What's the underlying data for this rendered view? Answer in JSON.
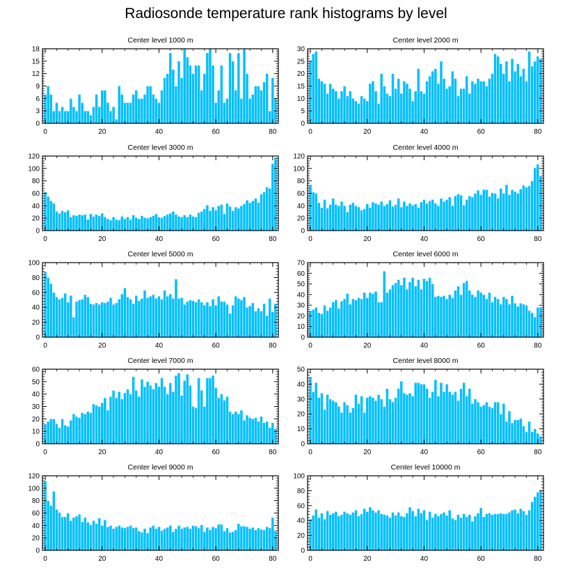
{
  "title": "Radiosonde temperature rank histograms by level",
  "colors": {
    "bar": "#00bfff",
    "bar_edge": "#ffffff",
    "axis": "#000000"
  },
  "chart_data": [
    {
      "type": "bar",
      "title": "Center level 1000 m",
      "x_ticks": [
        0,
        20,
        40,
        60,
        80
      ],
      "y_ticks": [
        0,
        3,
        6,
        9,
        12,
        15,
        18
      ],
      "xlim": [
        -1,
        82
      ],
      "ylim": [
        0,
        18
      ],
      "values": [
        7,
        9,
        7,
        3,
        5,
        3,
        4,
        3,
        3,
        6,
        4,
        3,
        7,
        5,
        3,
        3,
        2,
        4,
        7,
        4,
        8,
        8,
        5,
        3,
        4,
        1,
        9,
        7,
        5,
        5,
        5,
        7,
        8,
        6,
        6,
        7,
        9,
        9,
        7,
        6,
        5,
        8,
        11,
        12,
        17,
        13,
        9,
        15,
        11,
        18,
        16,
        14,
        12,
        14,
        14,
        8,
        12,
        17,
        18,
        14,
        5,
        8,
        14,
        5,
        6,
        17,
        15,
        8,
        17,
        6,
        18,
        12,
        6,
        7,
        9,
        9,
        8,
        10,
        12,
        3,
        11,
        6
      ]
    },
    {
      "type": "bar",
      "title": "Center level 2000 m",
      "x_ticks": [
        0,
        20,
        40,
        60,
        80
      ],
      "y_ticks": [
        0,
        5,
        10,
        15,
        20,
        25,
        30
      ],
      "xlim": [
        -1,
        82
      ],
      "ylim": [
        0,
        30
      ],
      "values": [
        25,
        28,
        29,
        18,
        17,
        16,
        12,
        16,
        14,
        13,
        10,
        13,
        15,
        11,
        13,
        10,
        9,
        8,
        11,
        10,
        9,
        16,
        17,
        13,
        8,
        20,
        15,
        12,
        11,
        20,
        14,
        18,
        12,
        17,
        16,
        14,
        9,
        13,
        22,
        13,
        12,
        17,
        19,
        21,
        22,
        16,
        25,
        18,
        14,
        15,
        21,
        18,
        11,
        14,
        14,
        19,
        12,
        17,
        16,
        18,
        17,
        17,
        15,
        18,
        20,
        28,
        27,
        24,
        20,
        25,
        17,
        26,
        21,
        24,
        19,
        22,
        17,
        29,
        23,
        25,
        27,
        26
      ]
    },
    {
      "type": "bar",
      "title": "Center level 3000 m",
      "x_ticks": [
        0,
        20,
        40,
        60,
        80
      ],
      "y_ticks": [
        0,
        20,
        40,
        60,
        80,
        100,
        120
      ],
      "xlim": [
        -1,
        82
      ],
      "ylim": [
        0,
        120
      ],
      "values": [
        62,
        55,
        48,
        44,
        31,
        28,
        32,
        30,
        33,
        22,
        25,
        24,
        26,
        25,
        26,
        18,
        27,
        23,
        26,
        24,
        28,
        22,
        19,
        17,
        22,
        18,
        17,
        23,
        19,
        22,
        18,
        25,
        21,
        19,
        24,
        21,
        20,
        22,
        24,
        27,
        22,
        21,
        24,
        26,
        28,
        31,
        26,
        23,
        22,
        25,
        22,
        26,
        23,
        22,
        29,
        31,
        35,
        41,
        32,
        38,
        33,
        40,
        42,
        27,
        44,
        39,
        32,
        38,
        36,
        40,
        43,
        49,
        45,
        48,
        52,
        45,
        59,
        62,
        70,
        68,
        108,
        118
      ]
    },
    {
      "type": "bar",
      "title": "Center level 4000 m",
      "x_ticks": [
        0,
        20,
        40,
        60,
        80
      ],
      "y_ticks": [
        0,
        20,
        40,
        60,
        80,
        100,
        120
      ],
      "xlim": [
        -1,
        82
      ],
      "ylim": [
        0,
        120
      ],
      "values": [
        74,
        62,
        60,
        45,
        37,
        50,
        36,
        42,
        52,
        42,
        40,
        47,
        40,
        30,
        42,
        45,
        40,
        38,
        33,
        35,
        43,
        37,
        46,
        44,
        42,
        47,
        40,
        43,
        49,
        39,
        42,
        52,
        38,
        47,
        40,
        44,
        41,
        43,
        37,
        46,
        50,
        44,
        48,
        50,
        44,
        40,
        52,
        47,
        50,
        54,
        40,
        56,
        59,
        57,
        41,
        50,
        56,
        54,
        60,
        65,
        58,
        66,
        66,
        55,
        61,
        60,
        52,
        68,
        60,
        74,
        58,
        66,
        63,
        60,
        67,
        73,
        70,
        72,
        80,
        101,
        107,
        88
      ]
    },
    {
      "type": "bar",
      "title": "Center level 5000 m",
      "x_ticks": [
        0,
        20,
        40,
        60,
        80
      ],
      "y_ticks": [
        0,
        20,
        40,
        60,
        80,
        100
      ],
      "xlim": [
        -1,
        82
      ],
      "ylim": [
        0,
        100
      ],
      "values": [
        88,
        80,
        72,
        60,
        54,
        51,
        53,
        59,
        47,
        56,
        27,
        48,
        50,
        51,
        57,
        54,
        45,
        44,
        46,
        44,
        47,
        46,
        48,
        53,
        44,
        46,
        51,
        58,
        66,
        54,
        51,
        45,
        56,
        49,
        52,
        63,
        53,
        55,
        57,
        52,
        55,
        51,
        63,
        55,
        58,
        52,
        78,
        52,
        53,
        44,
        48,
        50,
        49,
        47,
        51,
        47,
        43,
        47,
        42,
        51,
        43,
        55,
        48,
        48,
        44,
        32,
        43,
        55,
        52,
        50,
        54,
        40,
        42,
        46,
        35,
        39,
        35,
        45,
        29,
        52,
        34,
        45
      ]
    },
    {
      "type": "bar",
      "title": "Center level 6000 m",
      "x_ticks": [
        0,
        20,
        40,
        60,
        80
      ],
      "y_ticks": [
        0,
        10,
        20,
        30,
        40,
        50,
        60,
        70
      ],
      "xlim": [
        -1,
        82
      ],
      "ylim": [
        0,
        70
      ],
      "values": [
        25,
        26,
        28,
        23,
        22,
        30,
        25,
        28,
        33,
        35,
        27,
        34,
        36,
        41,
        31,
        36,
        35,
        37,
        36,
        42,
        37,
        42,
        41,
        43,
        33,
        33,
        62,
        42,
        45,
        49,
        51,
        54,
        49,
        56,
        45,
        52,
        56,
        48,
        54,
        45,
        55,
        53,
        56,
        50,
        38,
        39,
        38,
        39,
        36,
        40,
        37,
        44,
        48,
        40,
        51,
        53,
        44,
        40,
        38,
        44,
        42,
        40,
        36,
        42,
        33,
        38,
        36,
        31,
        38,
        36,
        31,
        39,
        32,
        29,
        32,
        31,
        30,
        25,
        23,
        19,
        28,
        28
      ]
    },
    {
      "type": "bar",
      "title": "Center level 7000 m",
      "x_ticks": [
        0,
        20,
        40,
        60,
        80
      ],
      "y_ticks": [
        0,
        10,
        20,
        30,
        40,
        50,
        60
      ],
      "xlim": [
        -1,
        82
      ],
      "ylim": [
        0,
        60
      ],
      "values": [
        16,
        18,
        20,
        20,
        16,
        13,
        20,
        15,
        14,
        19,
        24,
        22,
        21,
        25,
        24,
        26,
        25,
        32,
        31,
        30,
        33,
        37,
        27,
        38,
        43,
        37,
        42,
        36,
        41,
        44,
        40,
        54,
        43,
        38,
        52,
        46,
        50,
        47,
        44,
        49,
        46,
        53,
        46,
        40,
        49,
        42,
        55,
        57,
        39,
        51,
        56,
        47,
        30,
        29,
        53,
        43,
        30,
        53,
        53,
        55,
        45,
        37,
        40,
        35,
        38,
        26,
        24,
        26,
        24,
        27,
        19,
        23,
        21,
        20,
        21,
        18,
        22,
        17,
        18,
        13,
        17,
        12
      ]
    },
    {
      "type": "bar",
      "title": "Center level 8000 m",
      "x_ticks": [
        0,
        20,
        40,
        60,
        80
      ],
      "y_ticks": [
        0,
        10,
        20,
        30,
        40,
        50
      ],
      "xlim": [
        -1,
        82
      ],
      "ylim": [
        0,
        50
      ],
      "values": [
        45,
        35,
        41,
        31,
        34,
        23,
        33,
        30,
        29,
        28,
        25,
        21,
        28,
        26,
        21,
        24,
        33,
        27,
        32,
        21,
        31,
        32,
        31,
        29,
        33,
        30,
        25,
        37,
        30,
        28,
        31,
        37,
        42,
        34,
        33,
        34,
        32,
        41,
        41,
        40,
        40,
        37,
        31,
        35,
        43,
        32,
        41,
        35,
        40,
        35,
        33,
        35,
        29,
        37,
        41,
        32,
        37,
        27,
        30,
        28,
        25,
        26,
        28,
        25,
        24,
        28,
        28,
        20,
        27,
        15,
        22,
        14,
        16,
        16,
        17,
        12,
        8,
        15,
        8,
        10,
        7,
        5
      ]
    },
    {
      "type": "bar",
      "title": "Center level 9000 m",
      "x_ticks": [
        0,
        20,
        40,
        60,
        80
      ],
      "y_ticks": [
        0,
        20,
        40,
        60,
        80,
        100,
        120
      ],
      "xlim": [
        -1,
        82
      ],
      "ylim": [
        0,
        120
      ],
      "values": [
        112,
        80,
        72,
        95,
        66,
        61,
        54,
        54,
        60,
        48,
        53,
        55,
        58,
        46,
        53,
        45,
        41,
        48,
        43,
        52,
        40,
        49,
        38,
        40,
        35,
        38,
        40,
        37,
        36,
        38,
        40,
        36,
        37,
        31,
        29,
        35,
        28,
        37,
        40,
        35,
        38,
        32,
        35,
        37,
        40,
        30,
        35,
        40,
        35,
        37,
        38,
        35,
        40,
        39,
        36,
        41,
        30,
        37,
        33,
        38,
        36,
        42,
        42,
        31,
        36,
        29,
        30,
        33,
        43,
        39,
        39,
        38,
        35,
        37,
        33,
        36,
        34,
        33,
        38,
        36,
        53,
        32
      ]
    },
    {
      "type": "bar",
      "title": "Center level 10000 m",
      "x_ticks": [
        0,
        20,
        40,
        60,
        80
      ],
      "y_ticks": [
        0,
        20,
        40,
        60,
        80,
        100
      ],
      "xlim": [
        -1,
        82
      ],
      "ylim": [
        0,
        100
      ],
      "values": [
        42,
        47,
        55,
        44,
        50,
        42,
        53,
        48,
        50,
        52,
        46,
        48,
        52,
        50,
        48,
        51,
        54,
        46,
        49,
        56,
        52,
        58,
        54,
        51,
        54,
        49,
        48,
        47,
        44,
        51,
        47,
        51,
        46,
        45,
        50,
        58,
        53,
        46,
        56,
        50,
        54,
        41,
        52,
        44,
        49,
        46,
        49,
        51,
        47,
        54,
        43,
        41,
        48,
        44,
        49,
        45,
        48,
        39,
        46,
        50,
        57,
        45,
        49,
        50,
        48,
        49,
        49,
        50,
        49,
        49,
        51,
        54,
        55,
        50,
        56,
        53,
        48,
        54,
        65,
        72,
        78,
        80
      ]
    }
  ]
}
